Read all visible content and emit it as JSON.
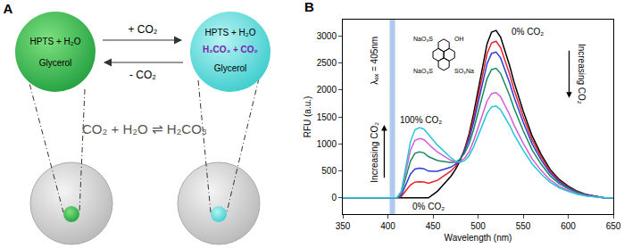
{
  "panel_a": {
    "label": "A",
    "forward": "+ CO₂",
    "backward": "- CO₂",
    "equation": "CO₂ + H₂O ⇌ H₂CO₃",
    "left_bubble": [
      "HPTS + H₂O",
      "Glycerol"
    ],
    "right_bubble": [
      "HPTS + H₂O",
      "H₂CO₃ + CO₂",
      "Glycerol"
    ]
  },
  "chart_data": {
    "type": "line",
    "panel_label": "B",
    "x_label": "Wavelength (nm)",
    "y_label": "RFU (a.u.)",
    "x": [
      350,
      360,
      370,
      380,
      390,
      400,
      405,
      410,
      415,
      420,
      425,
      430,
      435,
      440,
      445,
      450,
      455,
      460,
      465,
      470,
      475,
      480,
      485,
      490,
      495,
      500,
      505,
      510,
      515,
      520,
      525,
      530,
      535,
      540,
      545,
      550,
      560,
      570,
      580,
      590,
      600,
      610,
      620,
      630,
      640,
      650
    ],
    "series": [
      {
        "color": "#000000",
        "values": [
          0,
          0,
          0,
          0,
          0,
          0,
          0,
          0,
          0,
          0,
          0,
          0,
          0,
          0,
          0,
          62,
          124,
          217,
          310,
          403,
          527,
          682,
          899,
          1178,
          1550,
          1984,
          2449,
          2852,
          3069,
          3100,
          2976,
          2728,
          2449,
          2139,
          1860,
          1612,
          1147,
          806,
          527,
          341,
          217,
          124,
          62,
          31,
          0,
          0
        ]
      },
      {
        "color": "#e8202a",
        "values": [
          0,
          0,
          0,
          0,
          0,
          0,
          0,
          0,
          30,
          135,
          240,
          291,
          300,
          294,
          270,
          298,
          326,
          383,
          440,
          497,
          583,
          704,
          886,
          1132,
          1471,
          1868,
          2297,
          2668,
          2871,
          2900,
          2784,
          2552,
          2291,
          2001,
          1740,
          1508,
          1073,
          754,
          493,
          319,
          203,
          116,
          58,
          29,
          0,
          0
        ]
      },
      {
        "color": "#2a3fd6",
        "values": [
          0,
          0,
          0,
          0,
          0,
          0,
          0,
          0,
          55,
          248,
          440,
          534,
          550,
          539,
          495,
          494,
          493,
          519,
          545,
          571,
          624,
          715,
          866,
          1081,
          1389,
          1750,
          2144,
          2484,
          2673,
          2700,
          2592,
          2376,
          2133,
          1863,
          1620,
          1404,
          999,
          702,
          459,
          297,
          189,
          108,
          54,
          27,
          0,
          0
        ]
      },
      {
        "color": "#1a8a5a",
        "values": [
          0,
          0,
          0,
          0,
          0,
          0,
          0,
          0,
          85,
          383,
          680,
          825,
          850,
          833,
          765,
          728,
          691,
          678,
          665,
          652,
          663,
          715,
          824,
          997,
          1260,
          1570,
          1913,
          2208,
          2376,
          2400,
          2304,
          2112,
          1896,
          1656,
          1440,
          1248,
          888,
          624,
          408,
          264,
          168,
          96,
          48,
          24,
          0,
          0
        ]
      },
      {
        "color": "#d65bd6",
        "values": [
          0,
          0,
          0,
          0,
          0,
          0,
          0,
          0,
          110,
          495,
          880,
          1067,
          1100,
          1078,
          990,
          919,
          848,
          797,
          745,
          694,
          662,
          671,
          731,
          851,
          1052,
          1292,
          1563,
          1794,
          1931,
          1950,
          1872,
          1716,
          1541,
          1346,
          1170,
          1014,
          722,
          507,
          332,
          215,
          137,
          78,
          39,
          20,
          0,
          0
        ]
      },
      {
        "color": "#21c8d8",
        "values": [
          0,
          0,
          0,
          0,
          0,
          0,
          0,
          0,
          130,
          585,
          1040,
          1261,
          1300,
          1274,
          1170,
          1074,
          978,
          899,
          820,
          741,
          679,
          660,
          688,
          776,
          941,
          1140,
          1369,
          1564,
          1683,
          1700,
          1632,
          1496,
          1343,
          1173,
          1020,
          884,
          629,
          442,
          289,
          187,
          119,
          68,
          34,
          17,
          0,
          0
        ]
      }
    ],
    "xlim": [
      350,
      650
    ],
    "xticks": [
      350,
      400,
      450,
      500,
      550,
      600,
      650
    ],
    "ylim": [
      -300,
      3300
    ],
    "yticks": [
      0,
      500,
      1000,
      1500,
      2000,
      2500,
      3000
    ],
    "grid": false,
    "excitation": {
      "value": 405,
      "label": "λₑₓ = 405nm"
    },
    "annotations": [
      {
        "text": "0% CO₂",
        "x": 535,
        "y": 3080
      },
      {
        "text": "Increasing CO₂",
        "x": 615,
        "y": 2300,
        "arrow": "down"
      },
      {
        "text": "100% CO₂",
        "x": 437,
        "y": 1450
      },
      {
        "text": "Increasing CO₂",
        "x": 385,
        "y": 850,
        "arrow": "up"
      },
      {
        "text": "0% CO₂",
        "x": 445,
        "y": -160
      }
    ],
    "structure_labels": [
      "NaO₃S",
      "OH",
      "NaO₃S",
      "SO₃Na"
    ]
  }
}
